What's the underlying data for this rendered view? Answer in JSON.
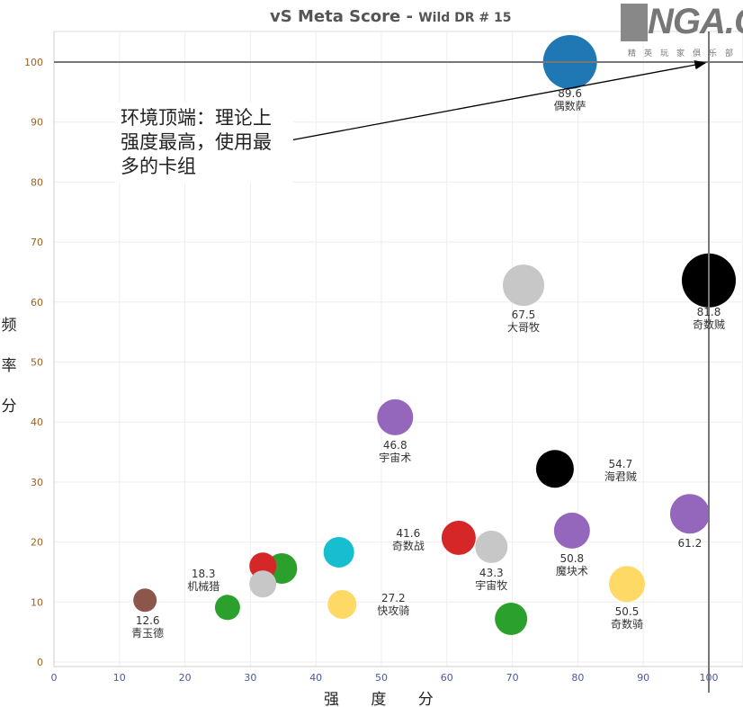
{
  "title": {
    "main": "vS Meta Score - ",
    "sub": "Wild DR # 15"
  },
  "logo": {
    "text": "NGA.CN",
    "subtitle": "精英玩家俱乐部"
  },
  "annotation": "环境顶端：理论上强度最高，使用最多的卡组",
  "chart_data": {
    "type": "scatter",
    "title": "vS Meta Score - Wild DR # 15",
    "xlabel": "强 度 分",
    "ylabel": "频率分",
    "ylabel_chars": [
      "频",
      "率",
      "分"
    ],
    "xlim": [
      0,
      100
    ],
    "ylim": [
      0,
      100
    ],
    "xticks": [
      0,
      10,
      20,
      30,
      40,
      50,
      60,
      70,
      80,
      90,
      100
    ],
    "yticks": [
      0,
      10,
      20,
      30,
      40,
      50,
      60,
      70,
      80,
      90,
      100
    ],
    "grid": true,
    "reference_lines": {
      "x": 100,
      "y": 100
    },
    "points": [
      {
        "name": "偶数萨",
        "score": "89.6",
        "x": 78.8,
        "y": 100,
        "size": 30,
        "color": "#1f77b4"
      },
      {
        "name": "奇数贼",
        "score": "81.8",
        "x": 100,
        "y": 63.6,
        "size": 30,
        "color": "#000000"
      },
      {
        "name": "大哥牧",
        "score": "67.5",
        "x": 71.7,
        "y": 62.8,
        "size": 23,
        "color": "#c7c7c7"
      },
      {
        "name": "宇宙术",
        "score": "46.8",
        "x": 52.1,
        "y": 40.8,
        "size": 20,
        "color": "#9467bd"
      },
      {
        "name": "海君贼",
        "score": "54.7",
        "x": 76.5,
        "y": 32.2,
        "size": 21,
        "color": "#000000"
      },
      {
        "name": "",
        "score": "61.2",
        "x": 97.1,
        "y": 24.7,
        "size": 22,
        "color": "#9467bd"
      },
      {
        "name": "魔块术",
        "score": "50.8",
        "x": 79.1,
        "y": 21.9,
        "size": 20,
        "color": "#9467bd"
      },
      {
        "name": "奇数战",
        "score": "41.6",
        "x": 61.8,
        "y": 20.7,
        "size": 19,
        "color": "#d62728"
      },
      {
        "name": "宇宙牧",
        "score": "43.3",
        "x": 66.8,
        "y": 19.2,
        "size": 18,
        "color": "#c7c7c7"
      },
      {
        "name": "",
        "score": "",
        "x": 43.5,
        "y": 18.3,
        "size": 17,
        "color": "#17becf"
      },
      {
        "name": "",
        "score": "",
        "x": 34.8,
        "y": 15.6,
        "size": 17,
        "color": "#2ca02c"
      },
      {
        "name": "",
        "score": "",
        "x": 31.9,
        "y": 16.0,
        "size": 15,
        "color": "#d62728"
      },
      {
        "name": "机械猎",
        "score": "18.3",
        "x": 31.9,
        "y": 13.0,
        "size": 15,
        "color": "#c7c7c7"
      },
      {
        "name": "快攻骑",
        "score": "27.2",
        "x": 44.0,
        "y": 9.6,
        "size": 16,
        "color": "#ffd966"
      },
      {
        "name": "奇数骑",
        "score": "50.5",
        "x": 87.5,
        "y": 13.0,
        "size": 20,
        "color": "#ffd966"
      },
      {
        "name": "",
        "score": "",
        "x": 26.5,
        "y": 9.1,
        "size": 14,
        "color": "#2ca02c"
      },
      {
        "name": "青玉德",
        "score": "12.6",
        "x": 13.9,
        "y": 10.3,
        "size": 13,
        "color": "#8c564b"
      },
      {
        "name": "",
        "score": "",
        "x": 69.8,
        "y": 7.2,
        "size": 18,
        "color": "#2ca02c"
      }
    ]
  }
}
